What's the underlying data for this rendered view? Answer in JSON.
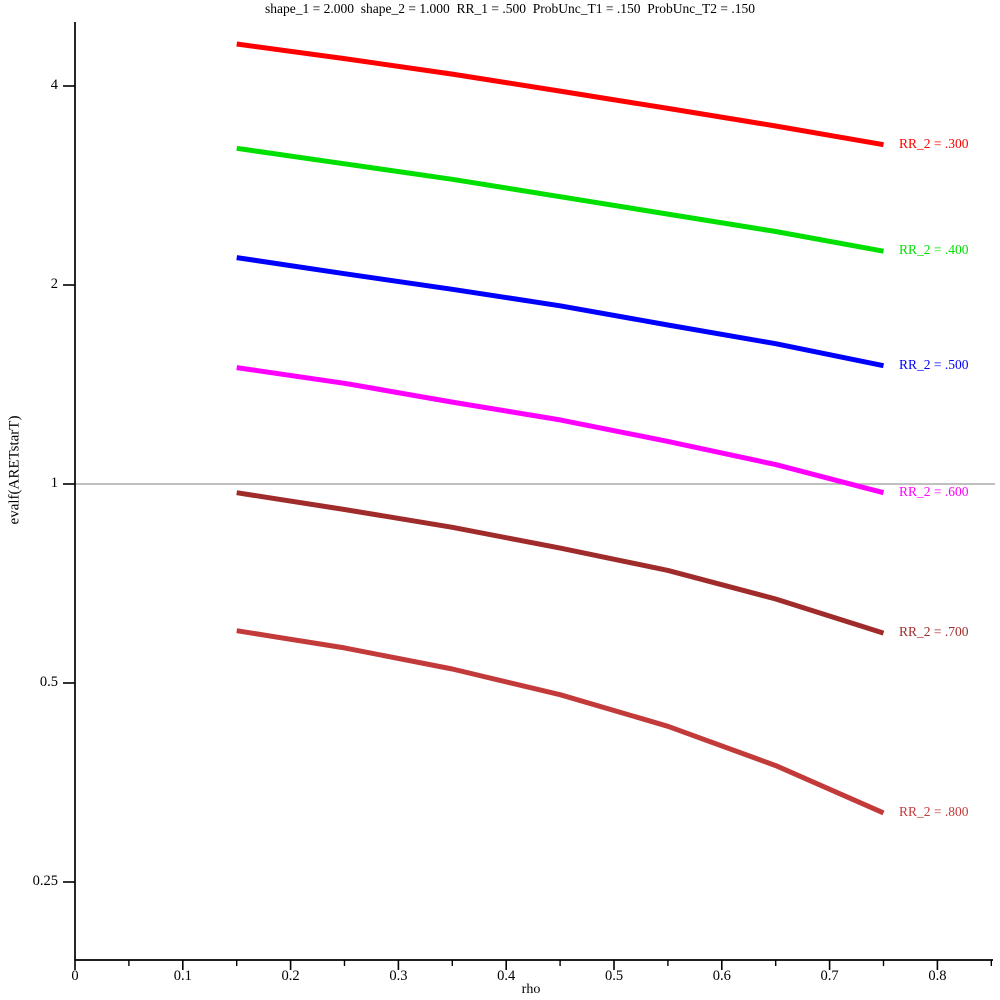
{
  "chart_data": {
    "type": "line",
    "title": "shape_1 = 2.000  shape_2 = 1.000  RR_1 = .500  ProbUnc_T1 = .150  ProbUnc_T2 = .150",
    "xlabel": "rho",
    "ylabel": "evalf(ARETstarT)",
    "grid": "off",
    "legend_position": "labels-at-curve-ends-right",
    "x_axis": {
      "min": 0,
      "max": 0.85,
      "major_ticks": [
        0,
        0.1,
        0.2,
        0.3,
        0.4,
        0.5,
        0.6,
        0.7,
        0.8
      ],
      "major_tick_labels": [
        "0",
        "0.1",
        "0.2",
        "0.3",
        "0.4",
        "0.5",
        "0.6",
        "0.7",
        "0.8"
      ],
      "minor_ticks": [
        0.05,
        0.15,
        0.25,
        0.35,
        0.45,
        0.55,
        0.65,
        0.75,
        0.85
      ]
    },
    "y_axis": {
      "scale": "log",
      "min": 0.19,
      "max": 5.0,
      "ticks": [
        4,
        2,
        1,
        0.5,
        0.25
      ],
      "tick_labels": [
        "4",
        "2",
        "1",
        "0.5",
        "0.25"
      ]
    },
    "reference_line": {
      "value": 1,
      "color": "#ababab"
    },
    "series": [
      {
        "label": "RR_2 = .300",
        "rr2": 0.3,
        "color": "#ff0000",
        "x": [
          0.15,
          0.25,
          0.35,
          0.45,
          0.55,
          0.65,
          0.75
        ],
        "y": [
          4.63,
          4.4,
          4.17,
          3.93,
          3.7,
          3.48,
          3.26
        ]
      },
      {
        "label": "RR_2 = .400",
        "rr2": 0.4,
        "color": "#00e000",
        "x": [
          0.15,
          0.25,
          0.35,
          0.45,
          0.55,
          0.65,
          0.75
        ],
        "y": [
          3.22,
          3.05,
          2.89,
          2.72,
          2.56,
          2.41,
          2.25
        ]
      },
      {
        "label": "RR_2 = .500",
        "rr2": 0.5,
        "color": "#0000ff",
        "x": [
          0.15,
          0.25,
          0.35,
          0.45,
          0.55,
          0.65,
          0.75
        ],
        "y": [
          2.2,
          2.08,
          1.97,
          1.86,
          1.74,
          1.63,
          1.51
        ]
      },
      {
        "label": "RR_2 = .600",
        "rr2": 0.6,
        "color": "#ff00ff",
        "x": [
          0.15,
          0.25,
          0.35,
          0.45,
          0.55,
          0.65,
          0.75
        ],
        "y": [
          1.5,
          1.42,
          1.33,
          1.25,
          1.16,
          1.07,
          0.97
        ]
      },
      {
        "label": "RR_2 = .700",
        "rr2": 0.7,
        "color": "#a02b2b",
        "x": [
          0.15,
          0.25,
          0.35,
          0.45,
          0.55,
          0.65,
          0.75
        ],
        "y": [
          0.97,
          0.915,
          0.86,
          0.8,
          0.74,
          0.67,
          0.595
        ]
      },
      {
        "label": "RR_2 = .800",
        "rr2": 0.8,
        "color": "#c33a3a",
        "x": [
          0.15,
          0.25,
          0.35,
          0.45,
          0.55,
          0.65,
          0.75
        ],
        "y": [
          0.6,
          0.565,
          0.525,
          0.48,
          0.43,
          0.375,
          0.318
        ]
      }
    ]
  }
}
